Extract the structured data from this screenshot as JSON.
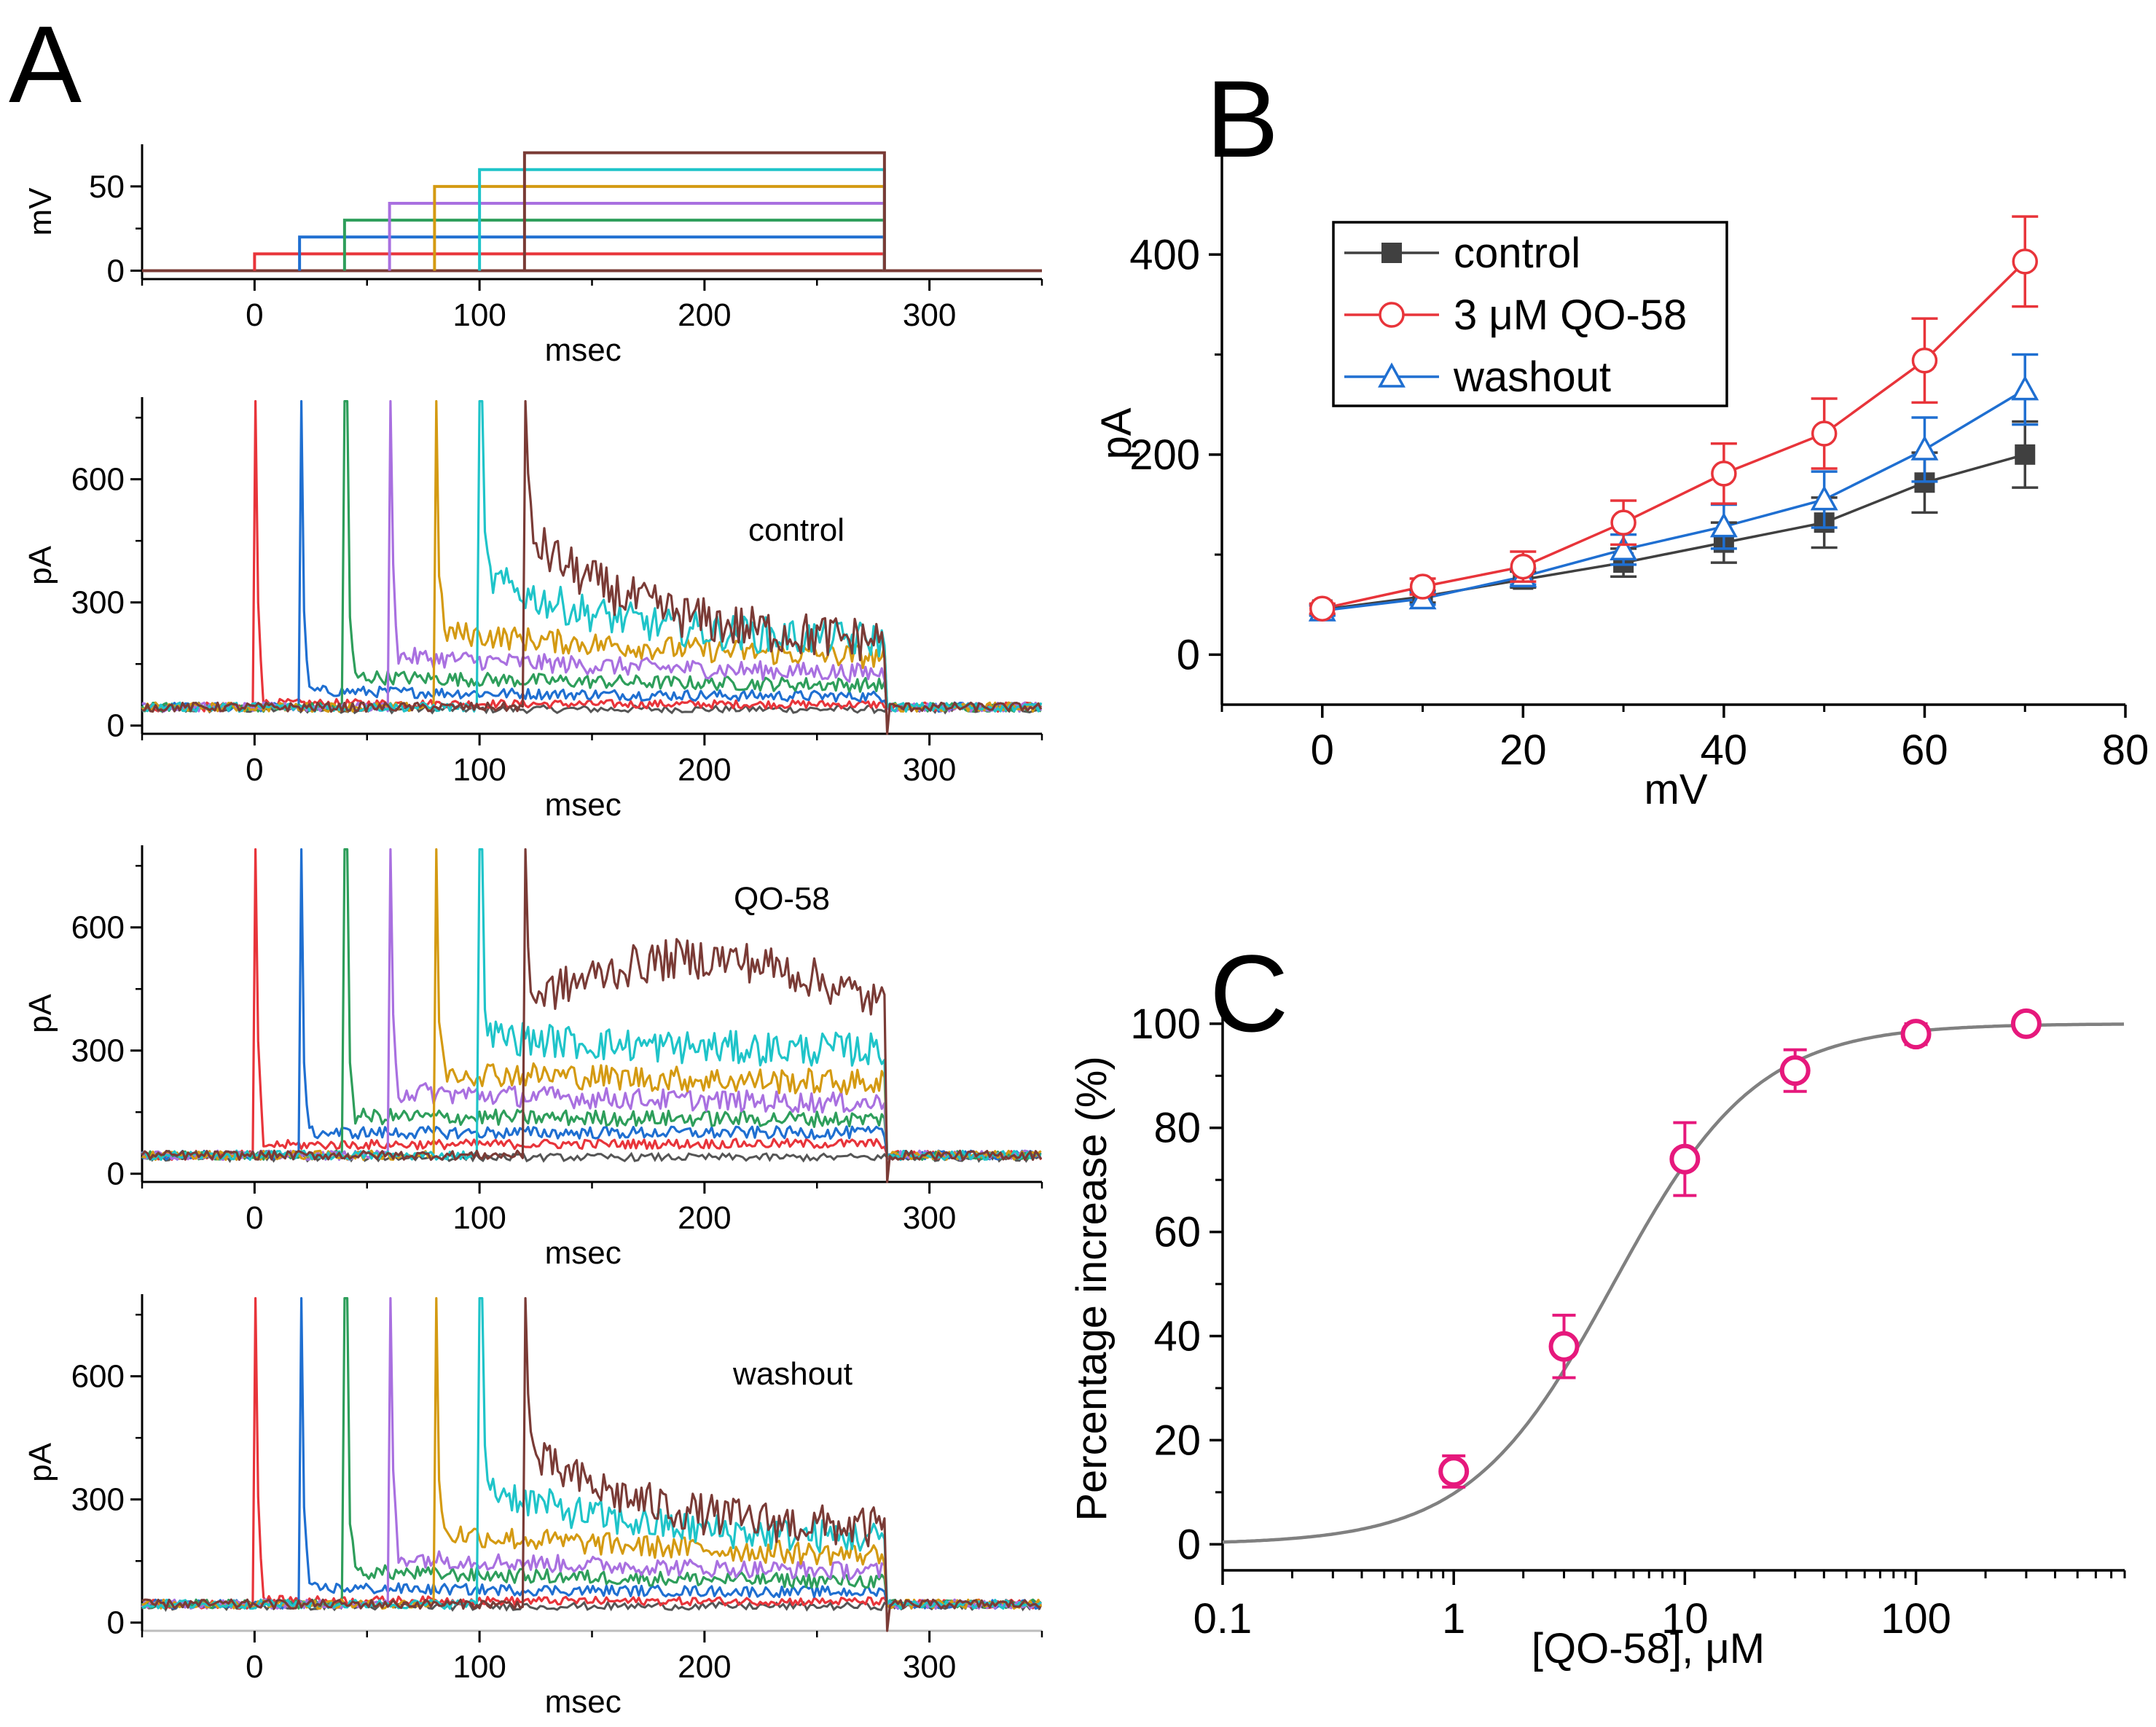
{
  "panels": {
    "A": {
      "letter": "A"
    },
    "B": {
      "letter": "B"
    },
    "C": {
      "letter": "C"
    }
  },
  "chart_data": [
    {
      "id": "A_voltage",
      "type": "line",
      "title": "",
      "xlabel": "msec",
      "ylabel": "mV",
      "xlim": [
        -50,
        350
      ],
      "ylim": [
        -5,
        75
      ],
      "xticks": [
        0,
        100,
        200,
        300
      ],
      "yticks": [
        0,
        50
      ],
      "step_start_ms": [
        0,
        20,
        40,
        60,
        80,
        100,
        120
      ],
      "step_end_ms": 280,
      "step_levels_mv": [
        10,
        20,
        30,
        40,
        50,
        60,
        70
      ],
      "series_colors": [
        "#e8343a",
        "#1f6fd1",
        "#2e9e5b",
        "#a970e0",
        "#d49a12",
        "#1fc4c9",
        "#7a3b36"
      ]
    },
    {
      "id": "A_control",
      "type": "line",
      "title": "",
      "label": "control",
      "xlabel": "msec",
      "ylabel": "pA",
      "xlim": [
        -50,
        350
      ],
      "ylim": [
        -20,
        800
      ],
      "xticks": [
        0,
        100,
        200,
        300
      ],
      "yticks": [
        0,
        300,
        600
      ],
      "step_start_ms": [
        0,
        20,
        40,
        60,
        80,
        100,
        120
      ],
      "step_end_ms": 280,
      "peak_pA": [
        55,
        85,
        120,
        170,
        230,
        370,
        470
      ],
      "end_pA": [
        50,
        65,
        90,
        110,
        140,
        200,
        195
      ],
      "baseline_pA": 45,
      "series_colors": [
        "#e8343a",
        "#1f6fd1",
        "#2e9e5b",
        "#a970e0",
        "#d49a12",
        "#1fc4c9",
        "#7a3b36"
      ]
    },
    {
      "id": "A_qo58",
      "type": "line",
      "title": "",
      "label": "QO-58",
      "xlabel": "msec",
      "ylabel": "pA",
      "xlim": [
        -50,
        350
      ],
      "ylim": [
        -20,
        800
      ],
      "xticks": [
        0,
        100,
        200,
        300
      ],
      "yticks": [
        0,
        300,
        600
      ],
      "step_start_ms": [
        0,
        20,
        40,
        60,
        80,
        100,
        120
      ],
      "step_end_ms": 280,
      "peak_pA": [
        70,
        100,
        140,
        200,
        250,
        340,
        420
      ],
      "end_pA": [
        75,
        100,
        130,
        160,
        210,
        300,
        430
      ],
      "baseline_pA": 45,
      "series_colors": [
        "#e8343a",
        "#1f6fd1",
        "#2e9e5b",
        "#a970e0",
        "#d49a12",
        "#1fc4c9",
        "#7a3b36"
      ]
    },
    {
      "id": "A_washout",
      "type": "line",
      "title": "",
      "label": "washout",
      "xlabel": "msec",
      "ylabel": "pA",
      "xlim": [
        -50,
        350
      ],
      "ylim": [
        -20,
        800
      ],
      "xticks": [
        0,
        100,
        200,
        300
      ],
      "yticks": [
        0,
        300,
        600
      ],
      "step_start_ms": [
        0,
        20,
        40,
        60,
        80,
        100,
        120
      ],
      "step_end_ms": 280,
      "peak_pA": [
        55,
        85,
        125,
        160,
        220,
        340,
        420
      ],
      "end_pA": [
        50,
        70,
        90,
        110,
        140,
        200,
        220
      ],
      "baseline_pA": 45,
      "series_colors": [
        "#e8343a",
        "#1f6fd1",
        "#2e9e5b",
        "#a970e0",
        "#d49a12",
        "#1fc4c9",
        "#7a3b36"
      ]
    },
    {
      "id": "B",
      "type": "line",
      "title": "",
      "xlabel": "mV",
      "ylabel": "pA",
      "xlim": [
        -10,
        80
      ],
      "ylim": [
        -50,
        500
      ],
      "xticks": [
        0,
        20,
        40,
        60,
        80
      ],
      "yticks": [
        0,
        200,
        400
      ],
      "x": [
        0,
        10,
        20,
        30,
        40,
        50,
        60,
        70
      ],
      "series": [
        {
          "name": "control",
          "color": "#404040",
          "marker": "square-filled",
          "values": [
            45,
            58,
            75,
            92,
            112,
            132,
            172,
            200
          ],
          "errors": [
            5,
            6,
            8,
            14,
            20,
            25,
            30,
            33
          ]
        },
        {
          "name": "3 μM QO-58",
          "color": "#e8343a",
          "marker": "circle-open",
          "values": [
            46,
            68,
            88,
            132,
            181,
            221,
            294,
            393
          ],
          "errors": [
            5,
            8,
            15,
            22,
            30,
            35,
            42,
            45
          ]
        },
        {
          "name": "washout",
          "color": "#1f6fd1",
          "marker": "triangle-open",
          "values": [
            44,
            56,
            78,
            105,
            128,
            155,
            205,
            265
          ],
          "errors": [
            5,
            6,
            8,
            15,
            22,
            28,
            32,
            35
          ]
        }
      ],
      "legend_position": "top-left"
    },
    {
      "id": "C",
      "type": "scatter",
      "title": "",
      "xlabel": "[QO-58], μM",
      "ylabel": "Percentage increase (%)",
      "xscale": "log",
      "xlim": [
        0.1,
        800
      ],
      "ylim": [
        -5,
        106
      ],
      "xticks": [
        0.1,
        1,
        10,
        100
      ],
      "xtick_labels": [
        "0.1",
        "1",
        "10",
        "100"
      ],
      "yticks": [
        0,
        20,
        40,
        60,
        80,
        100
      ],
      "x": [
        1,
        3,
        10,
        30,
        100,
        300
      ],
      "values": [
        14,
        38,
        74,
        91,
        98,
        100
      ],
      "errors": [
        3,
        6,
        7,
        4,
        2,
        1
      ],
      "marker_color": "#e6187c",
      "fit": {
        "model": "Hill",
        "color": "#808080",
        "EC50": 4.9,
        "n": 1.4,
        "max": 100
      }
    }
  ]
}
